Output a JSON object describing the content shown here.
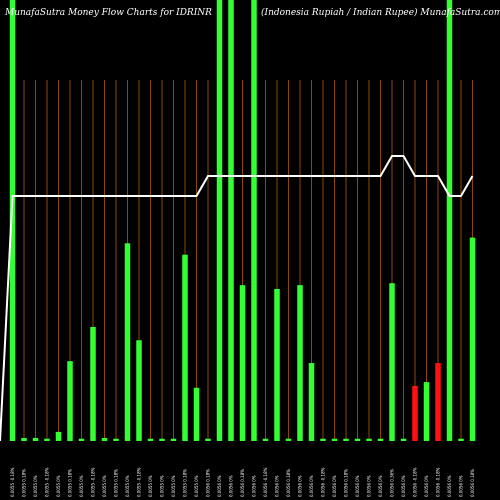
{
  "chart_data": {
    "type": "bar",
    "title_left": "MunafaSutra  Money Flow  Charts for IDRINR",
    "title_right": "(Indonesia  Rupiah / Indian  Rupee) MunafaSutra.com",
    "series": [
      {
        "name": "",
        "values": [
          116.0,
          0.8,
          0.8,
          0.6,
          2.4,
          21.0,
          0.6,
          30.0,
          0.8,
          0.6,
          52.0,
          26.5,
          0.6,
          0.6,
          0.6,
          49.0,
          14.0,
          0.6,
          116.0,
          116.0,
          41.0,
          116.0,
          0.6,
          40.0,
          0.6,
          41.0,
          20.5,
          0.6,
          0.6,
          0.6,
          0.6,
          0.6,
          0.6,
          41.5,
          0.6,
          14.5,
          15.5,
          20.5,
          116.0,
          0.6,
          53.5
        ],
        "colors": [
          "green",
          "green",
          "green",
          "green",
          "green",
          "green",
          "green",
          "green",
          "green",
          "green",
          "green",
          "green",
          "green",
          "green",
          "green",
          "green",
          "green",
          "green",
          "green",
          "green",
          "green",
          "green",
          "green",
          "green",
          "green",
          "green",
          "green",
          "green",
          "green",
          "green",
          "green",
          "green",
          "green",
          "green",
          "green",
          "red",
          "green",
          "red",
          "green",
          "green",
          "green"
        ]
      }
    ],
    "price_line": [
      6.82,
      6.82,
      6.82,
      6.82,
      6.82,
      6.82,
      6.82,
      6.82,
      6.82,
      6.82,
      6.82,
      6.82,
      6.82,
      6.82,
      6.82,
      6.82,
      6.82,
      6.83,
      6.83,
      6.83,
      6.83,
      6.83,
      6.83,
      6.83,
      6.83,
      6.83,
      6.83,
      6.83,
      6.83,
      6.83,
      6.83,
      6.83,
      6.83,
      6.84,
      6.84,
      6.83,
      6.83,
      6.83,
      6.82,
      6.82,
      6.83
    ],
    "categories": [
      "0.0055 -0.18%",
      "0.0055 0.18%",
      "0.0055 0%",
      "0.0055 -0.18%",
      "0.0055 0%",
      "0.0055 0.18%",
      "0.0055 0%",
      "0.0055 -0.18%",
      "0.0055 0%",
      "0.0055 0.18%",
      "0.0055 0%",
      "0.0055 -0.18%",
      "0.0055 0%",
      "0.0055 0%",
      "0.0055 0%",
      "0.0055 0.18%",
      "0.0055 0%",
      "0.0056 0.18%",
      "0.0056 0%",
      "0.0056 0%",
      "0.0056 0.18%",
      "0.0056 0%",
      "0.0056 -0.18%",
      "0.0056 0%",
      "0.0056 0.18%",
      "0.0056 0%",
      "0.0056 0%",
      "0.0056 -0.18%",
      "0.0056 0%",
      "0.0056 0.18%",
      "0.0056 0%",
      "0.0056 0%",
      "0.0056 0%",
      "0.0056 0.36%",
      "0.0056 0%",
      "0.0056 -0.18%",
      "0.0056 0%",
      "0.0056 -0.18%",
      "0.0056 0%",
      "0.0056 0%",
      "0.0056 0.18%"
    ],
    "grid": true,
    "colors": {
      "background": "#000000",
      "up_bar": "#33ff33",
      "down_bar": "#ff1111",
      "grid": "#b15a00",
      "price_line": "#ffffff",
      "text": "#ffffff"
    }
  }
}
